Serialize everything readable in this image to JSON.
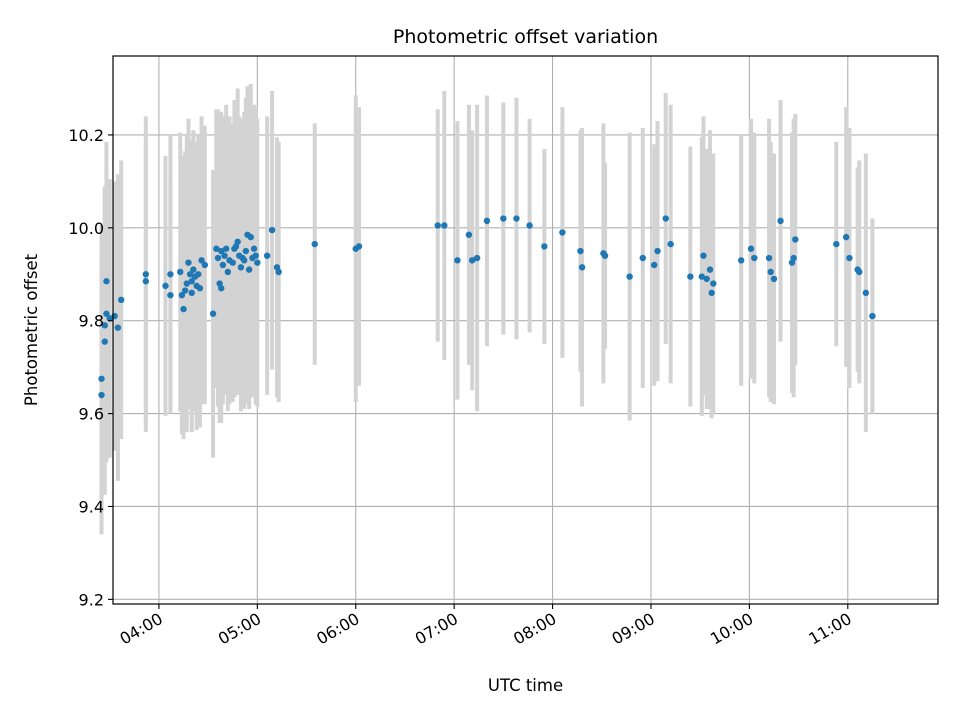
{
  "colors": {
    "points": "#1f77b4",
    "errorbars": "#d3d3d3",
    "grid": "#b0b0b0",
    "axes": "#000000",
    "background": "#ffffff"
  },
  "chart_data": {
    "type": "scatter",
    "title": "Photometric offset variation",
    "xlabel": "UTC time",
    "ylabel": "Photometric offset",
    "x_unit": "time of day (HH:MM, UTC)",
    "xlim": [
      "03:32",
      "11:55"
    ],
    "ylim": [
      9.19,
      10.37
    ],
    "xticks": [
      "04:00",
      "05:00",
      "06:00",
      "07:00",
      "08:00",
      "09:00",
      "10:00",
      "11:00"
    ],
    "yticks": [
      "9.2",
      "9.4",
      "9.6",
      "9.8",
      "10.0",
      "10.2"
    ],
    "grid": true,
    "legend": "none",
    "series": [
      {
        "style": "points with vertical error bars",
        "points": [
          {
            "x": "03:25",
            "y": 9.675,
            "err": 0.33
          },
          {
            "x": "03:25",
            "y": 9.64,
            "err": 0.3
          },
          {
            "x": "03:27",
            "y": 9.755,
            "err": 0.33
          },
          {
            "x": "03:27",
            "y": 9.79,
            "err": 0.3
          },
          {
            "x": "03:28",
            "y": 9.885,
            "err": 0.3
          },
          {
            "x": "03:28",
            "y": 9.815,
            "err": 0.32
          },
          {
            "x": "03:30",
            "y": 9.805,
            "err": 0.3
          },
          {
            "x": "03:33",
            "y": 9.81,
            "err": 0.29
          },
          {
            "x": "03:35",
            "y": 9.785,
            "err": 0.33
          },
          {
            "x": "03:37",
            "y": 9.845,
            "err": 0.3
          },
          {
            "x": "03:52",
            "y": 9.885,
            "err": 0.3
          },
          {
            "x": "03:52",
            "y": 9.9,
            "err": 0.34
          },
          {
            "x": "04:04",
            "y": 9.875,
            "err": 0.28
          },
          {
            "x": "04:07",
            "y": 9.9,
            "err": 0.3
          },
          {
            "x": "04:07",
            "y": 9.855,
            "err": 0.25
          },
          {
            "x": "04:13",
            "y": 9.905,
            "err": 0.3
          },
          {
            "x": "04:14",
            "y": 9.855,
            "err": 0.3
          },
          {
            "x": "04:15",
            "y": 9.825,
            "err": 0.28
          },
          {
            "x": "04:16",
            "y": 9.865,
            "err": 0.3
          },
          {
            "x": "04:17",
            "y": 9.88,
            "err": 0.32
          },
          {
            "x": "04:18",
            "y": 9.925,
            "err": 0.31
          },
          {
            "x": "04:19",
            "y": 9.9,
            "err": 0.29
          },
          {
            "x": "04:20",
            "y": 9.885,
            "err": 0.3
          },
          {
            "x": "04:20",
            "y": 9.86,
            "err": 0.3
          },
          {
            "x": "04:21",
            "y": 9.91,
            "err": 0.3
          },
          {
            "x": "04:22",
            "y": 9.895,
            "err": 0.29
          },
          {
            "x": "04:23",
            "y": 9.875,
            "err": 0.31
          },
          {
            "x": "04:24",
            "y": 9.9,
            "err": 0.3
          },
          {
            "x": "04:25",
            "y": 9.87,
            "err": 0.3
          },
          {
            "x": "04:26",
            "y": 9.93,
            "err": 0.31
          },
          {
            "x": "04:28",
            "y": 9.92,
            "err": 0.3
          },
          {
            "x": "04:33",
            "y": 9.815,
            "err": 0.31
          },
          {
            "x": "04:35",
            "y": 9.955,
            "err": 0.3
          },
          {
            "x": "04:36",
            "y": 9.935,
            "err": 0.32
          },
          {
            "x": "04:37",
            "y": 9.88,
            "err": 0.3
          },
          {
            "x": "04:38",
            "y": 9.87,
            "err": 0.29
          },
          {
            "x": "04:38",
            "y": 9.95,
            "err": 0.3
          },
          {
            "x": "04:39",
            "y": 9.92,
            "err": 0.3
          },
          {
            "x": "04:40",
            "y": 9.94,
            "err": 0.3
          },
          {
            "x": "04:41",
            "y": 9.955,
            "err": 0.31
          },
          {
            "x": "04:42",
            "y": 9.905,
            "err": 0.3
          },
          {
            "x": "04:43",
            "y": 9.93,
            "err": 0.31
          },
          {
            "x": "04:45",
            "y": 9.925,
            "err": 0.3
          },
          {
            "x": "04:46",
            "y": 9.955,
            "err": 0.32
          },
          {
            "x": "04:47",
            "y": 9.96,
            "err": 0.31
          },
          {
            "x": "04:48",
            "y": 9.97,
            "err": 0.33
          },
          {
            "x": "04:49",
            "y": 9.94,
            "err": 0.3
          },
          {
            "x": "04:50",
            "y": 9.915,
            "err": 0.31
          },
          {
            "x": "04:51",
            "y": 9.935,
            "err": 0.3
          },
          {
            "x": "04:52",
            "y": 9.93,
            "err": 0.32
          },
          {
            "x": "04:53",
            "y": 9.95,
            "err": 0.33
          },
          {
            "x": "04:54",
            "y": 9.985,
            "err": 0.32
          },
          {
            "x": "04:55",
            "y": 9.91,
            "err": 0.3
          },
          {
            "x": "04:56",
            "y": 9.98,
            "err": 0.33
          },
          {
            "x": "04:57",
            "y": 9.935,
            "err": 0.3
          },
          {
            "x": "04:58",
            "y": 9.955,
            "err": 0.31
          },
          {
            "x": "04:59",
            "y": 9.94,
            "err": 0.32
          },
          {
            "x": "05:00",
            "y": 9.925,
            "err": 0.31
          },
          {
            "x": "05:06",
            "y": 9.94,
            "err": 0.3
          },
          {
            "x": "05:09",
            "y": 9.995,
            "err": 0.3
          },
          {
            "x": "05:12",
            "y": 9.915,
            "err": 0.28
          },
          {
            "x": "05:13",
            "y": 9.905,
            "err": 0.28
          },
          {
            "x": "05:35",
            "y": 9.965,
            "err": 0.26
          },
          {
            "x": "06:00",
            "y": 9.955,
            "err": 0.33
          },
          {
            "x": "06:02",
            "y": 9.96,
            "err": 0.3
          },
          {
            "x": "06:50",
            "y": 10.005,
            "err": 0.25
          },
          {
            "x": "06:54",
            "y": 10.005,
            "err": 0.29
          },
          {
            "x": "07:02",
            "y": 9.93,
            "err": 0.3
          },
          {
            "x": "07:09",
            "y": 9.985,
            "err": 0.28
          },
          {
            "x": "07:11",
            "y": 9.93,
            "err": 0.28
          },
          {
            "x": "07:14",
            "y": 9.935,
            "err": 0.33
          },
          {
            "x": "07:20",
            "y": 10.015,
            "err": 0.27
          },
          {
            "x": "07:30",
            "y": 10.02,
            "err": 0.25
          },
          {
            "x": "07:38",
            "y": 10.02,
            "err": 0.26
          },
          {
            "x": "07:46",
            "y": 10.005,
            "err": 0.23
          },
          {
            "x": "07:55",
            "y": 9.96,
            "err": 0.21
          },
          {
            "x": "08:06",
            "y": 9.99,
            "err": 0.27
          },
          {
            "x": "08:17",
            "y": 9.95,
            "err": 0.26
          },
          {
            "x": "08:18",
            "y": 9.915,
            "err": 0.3
          },
          {
            "x": "08:31",
            "y": 9.945,
            "err": 0.28
          },
          {
            "x": "08:32",
            "y": 9.94,
            "err": 0.2
          },
          {
            "x": "08:47",
            "y": 9.895,
            "err": 0.31
          },
          {
            "x": "08:55",
            "y": 9.935,
            "err": 0.28
          },
          {
            "x": "09:02",
            "y": 9.92,
            "err": 0.26
          },
          {
            "x": "09:04",
            "y": 9.95,
            "err": 0.28
          },
          {
            "x": "09:09",
            "y": 10.02,
            "err": 0.27
          },
          {
            "x": "09:12",
            "y": 9.965,
            "err": 0.3
          },
          {
            "x": "09:24",
            "y": 9.895,
            "err": 0.28
          },
          {
            "x": "09:31",
            "y": 9.895,
            "err": 0.3
          },
          {
            "x": "09:32",
            "y": 9.94,
            "err": 0.3
          },
          {
            "x": "09:34",
            "y": 9.89,
            "err": 0.28
          },
          {
            "x": "09:36",
            "y": 9.91,
            "err": 0.3
          },
          {
            "x": "09:37",
            "y": 9.86,
            "err": 0.27
          },
          {
            "x": "09:38",
            "y": 9.88,
            "err": 0.28
          },
          {
            "x": "09:55",
            "y": 9.93,
            "err": 0.27
          },
          {
            "x": "10:01",
            "y": 9.955,
            "err": 0.28
          },
          {
            "x": "10:03",
            "y": 9.935,
            "err": 0.27
          },
          {
            "x": "10:12",
            "y": 9.935,
            "err": 0.3
          },
          {
            "x": "10:13",
            "y": 9.905,
            "err": 0.28
          },
          {
            "x": "10:15",
            "y": 9.89,
            "err": 0.27
          },
          {
            "x": "10:19",
            "y": 10.015,
            "err": 0.26
          },
          {
            "x": "10:26",
            "y": 9.925,
            "err": 0.28
          },
          {
            "x": "10:27",
            "y": 9.935,
            "err": 0.3
          },
          {
            "x": "10:28",
            "y": 9.975,
            "err": 0.27
          },
          {
            "x": "10:53",
            "y": 9.965,
            "err": 0.22
          },
          {
            "x": "10:59",
            "y": 9.98,
            "err": 0.28
          },
          {
            "x": "11:01",
            "y": 9.935,
            "err": 0.28
          },
          {
            "x": "11:06",
            "y": 9.91,
            "err": 0.22
          },
          {
            "x": "11:07",
            "y": 9.905,
            "err": 0.24
          },
          {
            "x": "11:11",
            "y": 9.86,
            "err": 0.3
          },
          {
            "x": "11:15",
            "y": 9.81,
            "err": 0.21
          }
        ]
      }
    ]
  }
}
